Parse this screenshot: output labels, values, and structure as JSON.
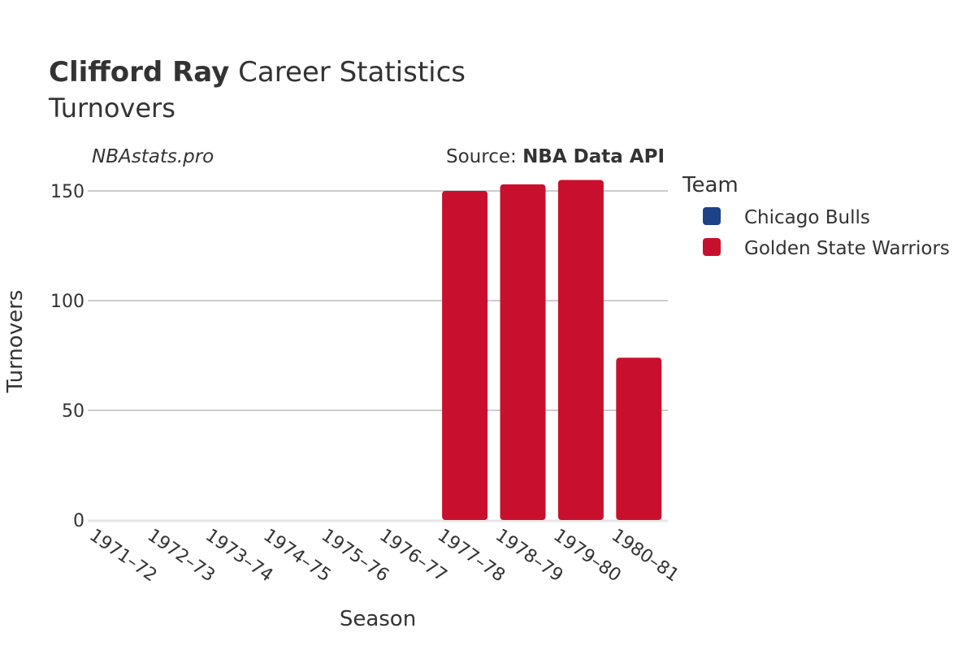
{
  "header": {
    "title_bold": "Clifford Ray",
    "title_rest": " Career Statistics",
    "subtitle": "Turnovers"
  },
  "credits": {
    "site": "NBAstats.pro",
    "source_label": "Source: ",
    "source_name": "NBA Data API"
  },
  "legend": {
    "title": "Team",
    "items": [
      {
        "name": "Chicago Bulls",
        "color": "#1d428a"
      },
      {
        "name": "Golden State Warriors",
        "color": "#c8102e"
      }
    ]
  },
  "chart_data": {
    "type": "bar",
    "xlabel": "Season",
    "ylabel": "Turnovers",
    "ylim": [
      0,
      160
    ],
    "yticks": [
      0,
      50,
      100,
      150
    ],
    "grid": true,
    "legend_position": "right",
    "categories": [
      "1971–72",
      "1972–73",
      "1973–74",
      "1974–75",
      "1975–76",
      "1976–77",
      "1977–78",
      "1978–79",
      "1979–80",
      "1980–81"
    ],
    "series": [
      {
        "name": "Chicago Bulls",
        "color": "#1d428a",
        "values": [
          null,
          null,
          null,
          null,
          null,
          null,
          null,
          null,
          null,
          null
        ]
      },
      {
        "name": "Golden State Warriors",
        "color": "#c8102e",
        "values": [
          null,
          null,
          null,
          null,
          null,
          null,
          150,
          153,
          155,
          74
        ]
      }
    ]
  }
}
